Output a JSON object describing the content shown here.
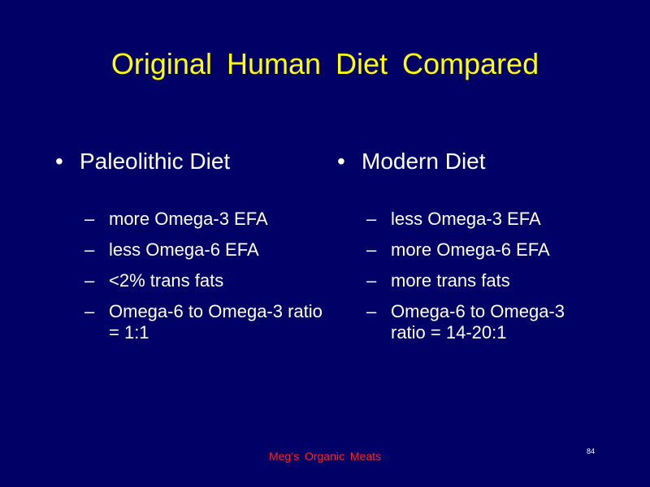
{
  "slide": {
    "title": "Original  Human  Diet  Compared",
    "bullet_glyph": "•",
    "dash_glyph": "–",
    "columns": [
      {
        "heading": "Paleolithic Diet",
        "items": [
          "more Omega-3 EFA",
          "less Omega-6 EFA",
          "<2% trans fats",
          "Omega-6 to Omega-3 ratio = 1:1"
        ]
      },
      {
        "heading": "Modern Diet",
        "items": [
          "less Omega-3 EFA",
          "more Omega-6 EFA",
          "more trans fats",
          "Omega-6 to Omega-3 ratio = 14-20:1"
        ]
      }
    ],
    "footer": "Meg’s  Organic  Meats",
    "page_number": "84",
    "colors": {
      "background": "#000066",
      "title": "#ffff00",
      "body_text": "#ffffff",
      "footer": "#ff2020"
    }
  }
}
